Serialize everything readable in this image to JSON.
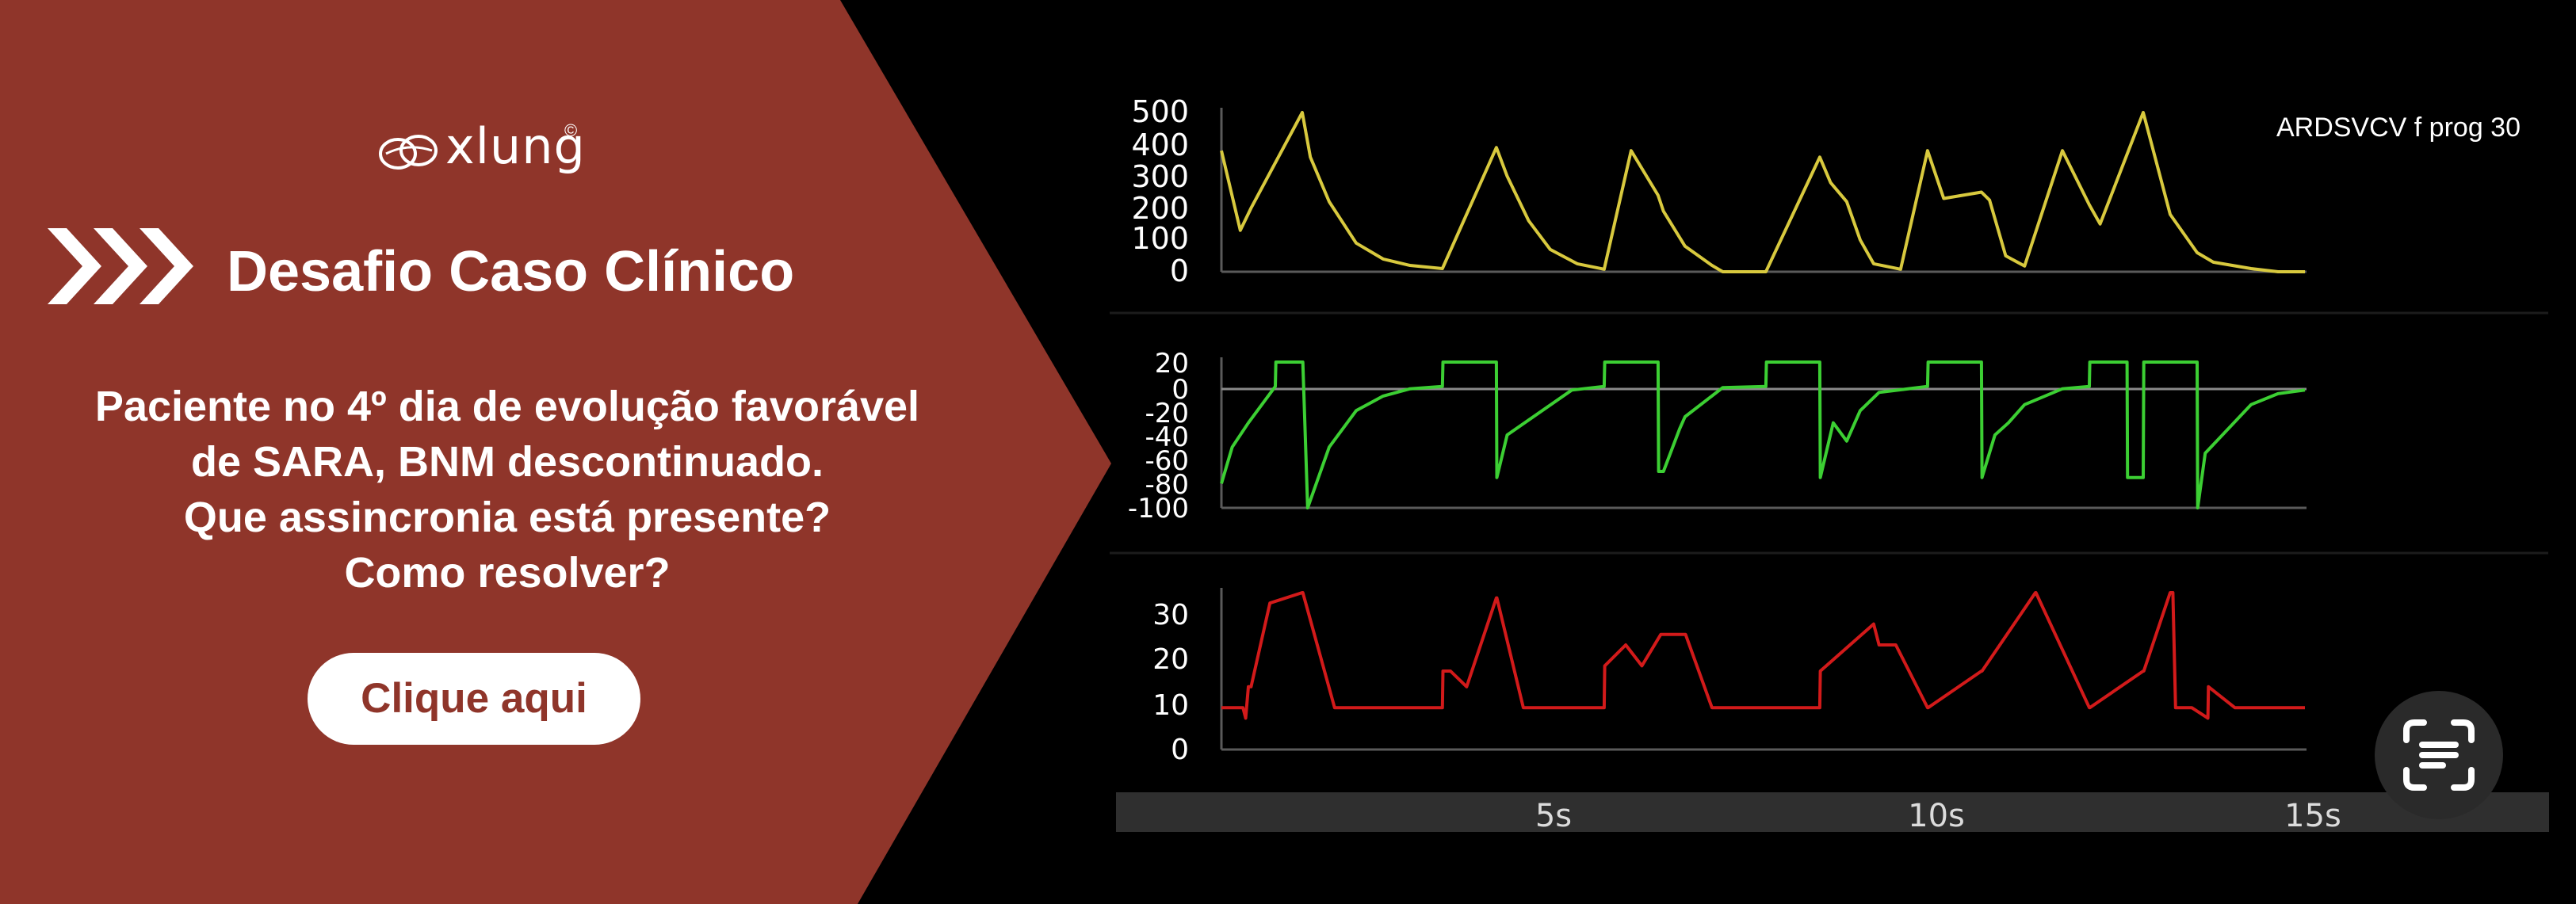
{
  "colors": {
    "panel": "#8f352a",
    "background": "#000000",
    "axis": "#5a5a5a",
    "volume": "#d8c93e",
    "flow": "#3ccf33",
    "pressure": "#d21a1a",
    "timebar": "#2f2f2f"
  },
  "brand": {
    "name": "xlung",
    "mark": "©",
    "icon": "xlung-logo-icon"
  },
  "heading": {
    "icon": "triple-chevron-icon",
    "text": "Desafio Caso Clínico"
  },
  "question": {
    "lines": [
      "Paciente no 4º dia de evolução favorável",
      "de SARA, BNM descontinuado.",
      "Que assincronia está presente?",
      "Como resolver?"
    ]
  },
  "cta_label": "Clique aqui",
  "scan_icon": "text-scan-icon",
  "chart_data": {
    "type": "line",
    "annotation": "ARDSVCV f prog 30",
    "x_ticks": [
      "5s",
      "10s",
      "15s"
    ],
    "xlim_s": [
      0,
      15
    ],
    "panels": [
      {
        "name": "volume",
        "yticks": [
          "500",
          "400",
          "300",
          "200",
          "100",
          "0"
        ],
        "ylim": [
          0,
          500
        ],
        "x": [
          0,
          0.35,
          0.55,
          1.5,
          1.65,
          2.0,
          2.5,
          3.0,
          3.5,
          4.1,
          5.1,
          5.3,
          5.7,
          6.1,
          6.6,
          7.1,
          7.6,
          8.1,
          8.2,
          8.6,
          9.1,
          9.3,
          10.1,
          11.1,
          11.3,
          11.6,
          11.85,
          12.1,
          12.6,
          13.1,
          13.4,
          14.1,
          14.25,
          14.55,
          14.9,
          15.6,
          16.1,
          16.3,
          17.1,
          17.6,
          18.1,
          18.4,
          19.1,
          19.6,
          20.1
        ],
        "y": [
          380,
          130,
          200,
          500,
          360,
          220,
          90,
          40,
          20,
          10,
          390,
          300,
          160,
          70,
          25,
          8,
          380,
          240,
          190,
          80,
          20,
          0,
          0,
          360,
          280,
          220,
          100,
          25,
          8,
          380,
          230,
          250,
          225,
          50,
          18,
          380,
          210,
          150,
          500,
          180,
          60,
          30,
          10,
          0,
          0
        ]
      },
      {
        "name": "flow",
        "yticks": [
          "20",
          "0",
          "-20",
          "-40",
          "-60",
          "-80",
          "-100"
        ],
        "ylim": [
          -100,
          20
        ],
        "x": [
          0,
          0.2,
          0.5,
          1.0,
          1.01,
          1.35,
          1.5,
          1.51,
          1.6,
          2.0,
          2.5,
          3.0,
          3.5,
          4.1,
          4.11,
          5.1,
          5.11,
          5.3,
          6.5,
          7.1,
          7.11,
          8.1,
          8.11,
          8.2,
          8.5,
          8.6,
          9.3,
          10.1,
          10.11,
          11.1,
          11.11,
          11.35,
          11.6,
          11.85,
          12.2,
          13.1,
          13.11,
          14.1,
          14.11,
          14.35,
          14.6,
          14.9,
          15.6,
          16.1,
          16.11,
          16.8,
          16.81,
          17.1,
          17.11,
          17.3,
          18.1,
          18.11,
          18.25,
          19.1,
          19.6,
          20.1
        ],
        "y": [
          -80,
          -50,
          -30,
          0,
          28,
          28,
          28,
          28,
          -100,
          -50,
          -20,
          -8,
          -2,
          0,
          28,
          28,
          -75,
          -40,
          -3,
          0,
          28,
          28,
          -70,
          -70,
          -35,
          -25,
          -1,
          0,
          28,
          28,
          -75,
          -30,
          -45,
          -20,
          -5,
          0,
          28,
          28,
          -75,
          -40,
          -30,
          -15,
          -2,
          0,
          28,
          28,
          -75,
          -75,
          28,
          28,
          28,
          -100,
          -55,
          -15,
          -6,
          -3
        ]
      },
      {
        "name": "pressure",
        "yticks": [
          "30",
          "20",
          "10",
          "0"
        ],
        "ylim": [
          0,
          30
        ],
        "x": [
          0,
          0.4,
          0.45,
          0.5,
          0.55,
          0.9,
          1.5,
          1.51,
          2.1,
          4.1,
          4.11,
          4.25,
          4.55,
          5.1,
          5.11,
          5.6,
          7.1,
          7.11,
          7.5,
          7.8,
          8.15,
          8.4,
          8.6,
          8.61,
          9.1,
          11.1,
          11.11,
          12.1,
          12.2,
          12.5,
          12.51,
          13.1,
          13.11,
          14.1,
          14.11,
          15.1,
          15.11,
          16.1,
          16.11,
          17.1,
          17.11,
          17.6,
          17.65,
          17.7,
          17.75,
          18.0,
          18.3,
          18.31,
          18.8,
          20.1
        ],
        "y": [
          8,
          8,
          6,
          12,
          12,
          28,
          35,
          35,
          8,
          8,
          15,
          15,
          12,
          29,
          29,
          8,
          8,
          16,
          20,
          16,
          22,
          22,
          22,
          22,
          8,
          8,
          15,
          24,
          20,
          20,
          20,
          8,
          8,
          15,
          15,
          30,
          30,
          8,
          8,
          15,
          15,
          30,
          30,
          8,
          8,
          8,
          6,
          12,
          8,
          8
        ]
      }
    ]
  }
}
